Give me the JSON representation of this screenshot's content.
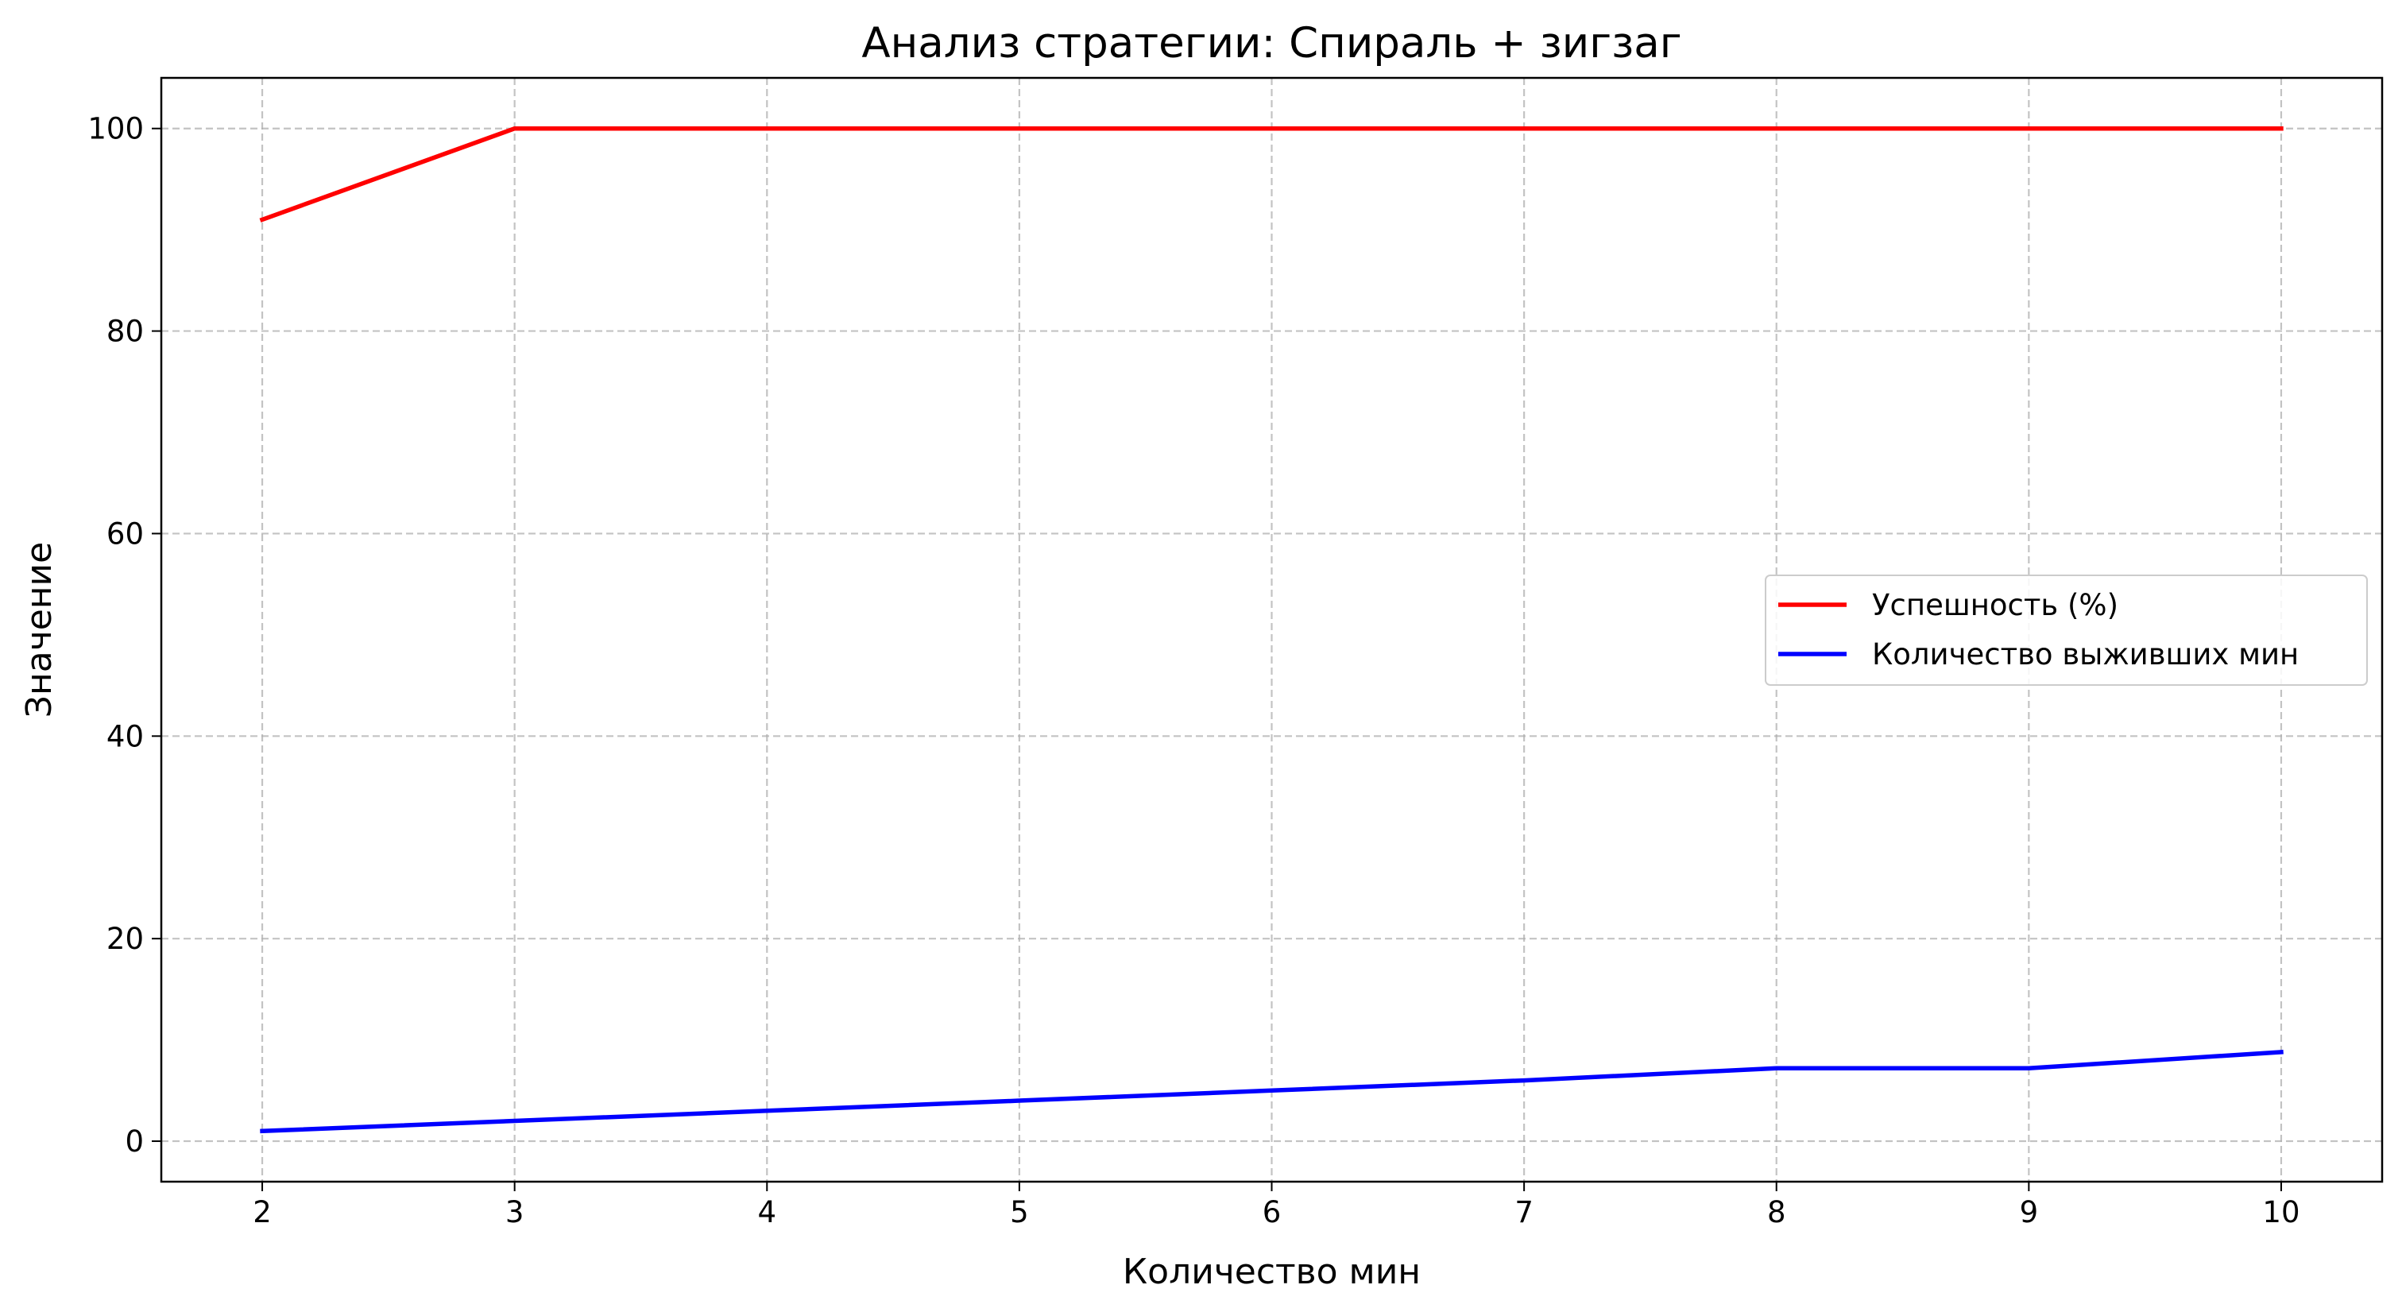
{
  "chart_data": {
    "type": "line",
    "title": "Анализ стратегии: Спираль + зигзаг",
    "xlabel": "Количество мин",
    "ylabel": "Значение",
    "x": [
      2,
      3,
      4,
      5,
      6,
      7,
      8,
      9,
      10
    ],
    "x_ticks": [
      "2",
      "3",
      "4",
      "5",
      "6",
      "7",
      "8",
      "9",
      "10"
    ],
    "y_ticks": [
      "0",
      "20",
      "40",
      "60",
      "80",
      "100"
    ],
    "xlim": [
      1.6,
      10.4
    ],
    "ylim": [
      -4,
      105
    ],
    "grid": true,
    "legend_position": "center-right",
    "series": [
      {
        "name": "Успешность (%)",
        "color": "#ff0000",
        "values": [
          91,
          100,
          100,
          100,
          100,
          100,
          100,
          100,
          100
        ]
      },
      {
        "name": "Количество выживших мин",
        "color": "#0000ff",
        "values": [
          1,
          2,
          3,
          4,
          5,
          6,
          7.2,
          7.2,
          8.8
        ]
      }
    ]
  }
}
